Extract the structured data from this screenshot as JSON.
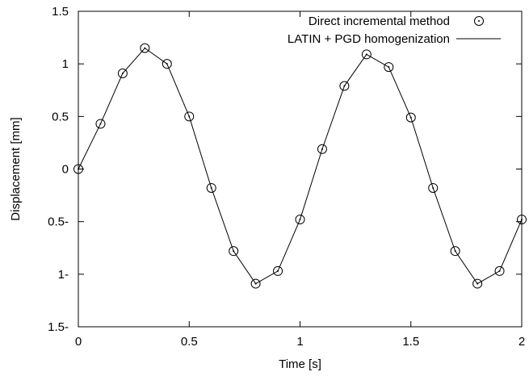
{
  "chart_data": {
    "type": "line",
    "xlabel": "Time [s]",
    "ylabel": "Displacement [mm]",
    "xlim": [
      0,
      2
    ],
    "ylim": [
      -1.5,
      1.5
    ],
    "x_ticks": [
      0,
      0.5,
      1,
      1.5,
      2
    ],
    "x_tick_labels": [
      "0",
      "0.5",
      "1",
      "1.5",
      "2"
    ],
    "y_ticks": [
      1.5,
      1,
      0.5,
      0,
      -0.5,
      -1,
      -1.5
    ],
    "y_tick_labels": [
      "1.5",
      "1",
      "0.5",
      "0",
      "0.5-",
      "1-",
      "1.5-"
    ],
    "grid": false,
    "legend_position": "top-right",
    "series": [
      {
        "name": "Direct incremental method",
        "style": "markers",
        "marker": "circle-with-dot",
        "color": "#000000",
        "x": [
          0,
          0.1,
          0.2,
          0.3,
          0.4,
          0.5,
          0.6,
          0.7,
          0.8,
          0.9,
          1.0,
          1.1,
          1.2,
          1.3,
          1.4,
          1.5,
          1.6,
          1.7,
          1.8,
          1.9,
          2.0
        ],
        "y": [
          0.0,
          0.43,
          0.91,
          1.15,
          1.0,
          0.5,
          -0.18,
          -0.78,
          -1.09,
          -0.97,
          -0.48,
          0.19,
          0.79,
          1.09,
          0.97,
          0.49,
          -0.18,
          -0.78,
          -1.09,
          -0.97,
          -0.48
        ]
      },
      {
        "name": "LATIN + PGD homogenization",
        "style": "line",
        "color": "#000000",
        "x": [
          0,
          0.1,
          0.2,
          0.3,
          0.4,
          0.5,
          0.6,
          0.7,
          0.8,
          0.9,
          1.0,
          1.1,
          1.2,
          1.3,
          1.4,
          1.5,
          1.6,
          1.7,
          1.8,
          1.9,
          2.0
        ],
        "y": [
          0.0,
          0.43,
          0.91,
          1.15,
          1.0,
          0.5,
          -0.18,
          -0.78,
          -1.09,
          -0.97,
          -0.48,
          0.19,
          0.79,
          1.09,
          0.97,
          0.49,
          -0.18,
          -0.78,
          -1.09,
          -0.97,
          -0.48
        ]
      }
    ]
  }
}
